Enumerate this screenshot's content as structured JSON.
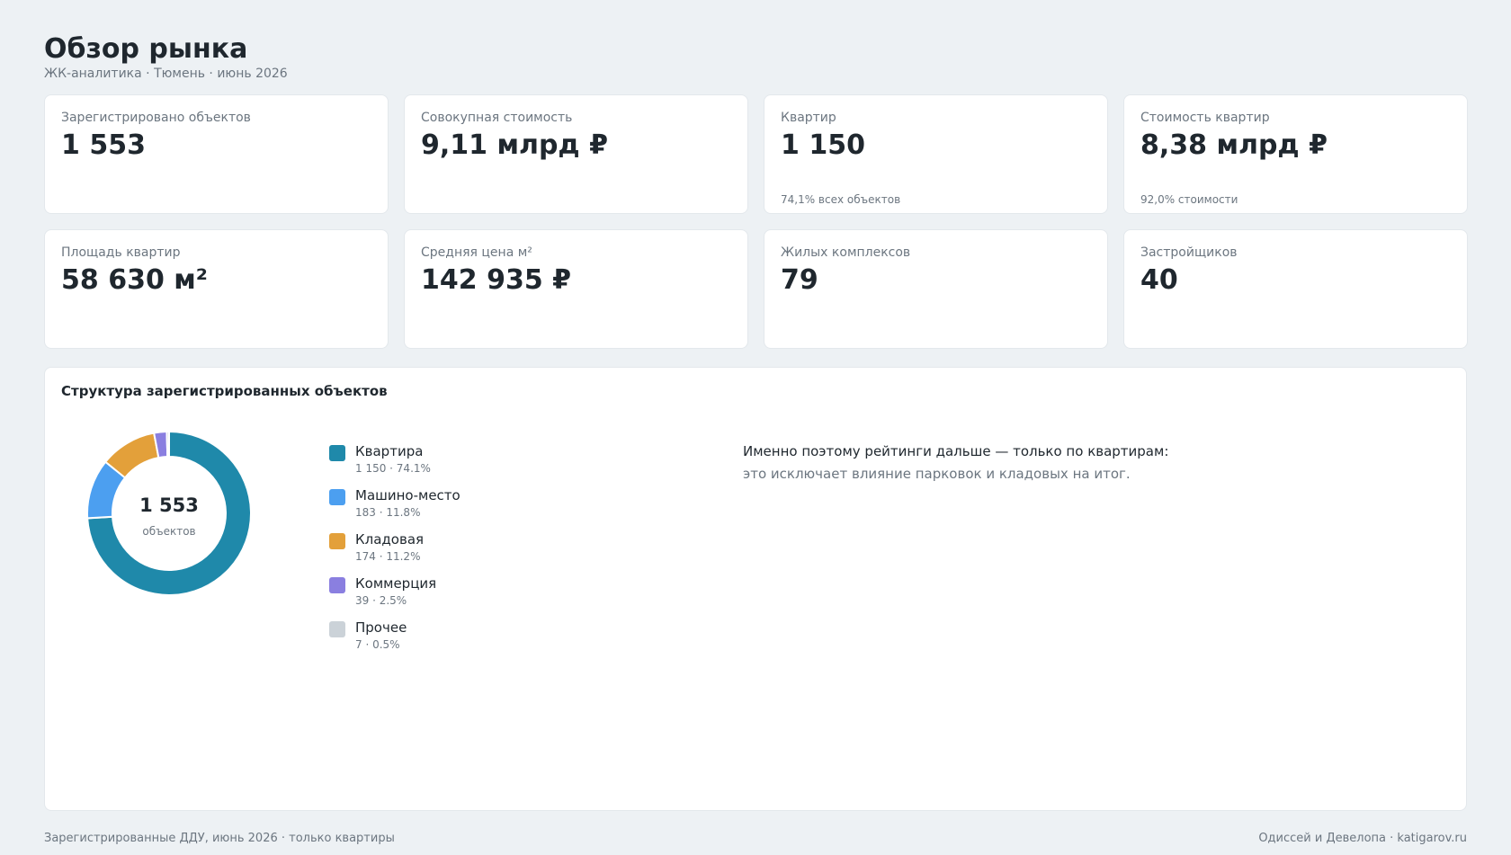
{
  "header": {
    "title": "Обзор рынка",
    "subtitle": "ЖК-аналитика · Тюмень · июнь 2026"
  },
  "kpis": [
    {
      "label": "Зарегистрировано объектов",
      "value": "1 553",
      "note": ""
    },
    {
      "label": "Совокупная стоимость",
      "value": "9,11 млрд ₽",
      "note": ""
    },
    {
      "label": "Квартир",
      "value": "1 150",
      "note": "74,1% всех объектов"
    },
    {
      "label": "Стоимость квартир",
      "value": "8,38 млрд ₽",
      "note": "92,0% стоимости"
    },
    {
      "label": "Площадь квартир",
      "value": "58 630 м²",
      "note": ""
    },
    {
      "label": "Средняя цена м²",
      "value": "142 935 ₽",
      "note": ""
    },
    {
      "label": "Жилых комплексов",
      "value": "79",
      "note": ""
    },
    {
      "label": "Застройщиков",
      "value": "40",
      "note": ""
    }
  ],
  "structure": {
    "title": "Структура зарегистрированных объектов",
    "center_value": "1 553",
    "center_label": "объектов",
    "note_main": "Именно поэтому рейтинги дальше — только по квартирам:",
    "note_sub": "это исключает влияние парковок и кладовых на итог."
  },
  "chart_data": {
    "type": "pie",
    "variant": "donut",
    "total": 1553,
    "categories": [
      "Квартира",
      "Машино-место",
      "Кладовая",
      "Коммерция",
      "Прочее"
    ],
    "values": [
      1150,
      183,
      174,
      39,
      7
    ],
    "labels": [
      "1 150 · 74.1%",
      "183 · 11.8%",
      "174 · 11.2%",
      "39 · 2.5%",
      "7 · 0.5%"
    ],
    "colors": [
      "#1f89aa",
      "#4c9ff0",
      "#e3a03a",
      "#8a7fe0",
      "#cbd2d8"
    ],
    "legend_position": "right"
  },
  "footer": {
    "left": "Зарегистрированные ДДУ, июнь 2026 · только квартиры",
    "right": "Одиссей и Девелопа · katigarov.ru"
  }
}
